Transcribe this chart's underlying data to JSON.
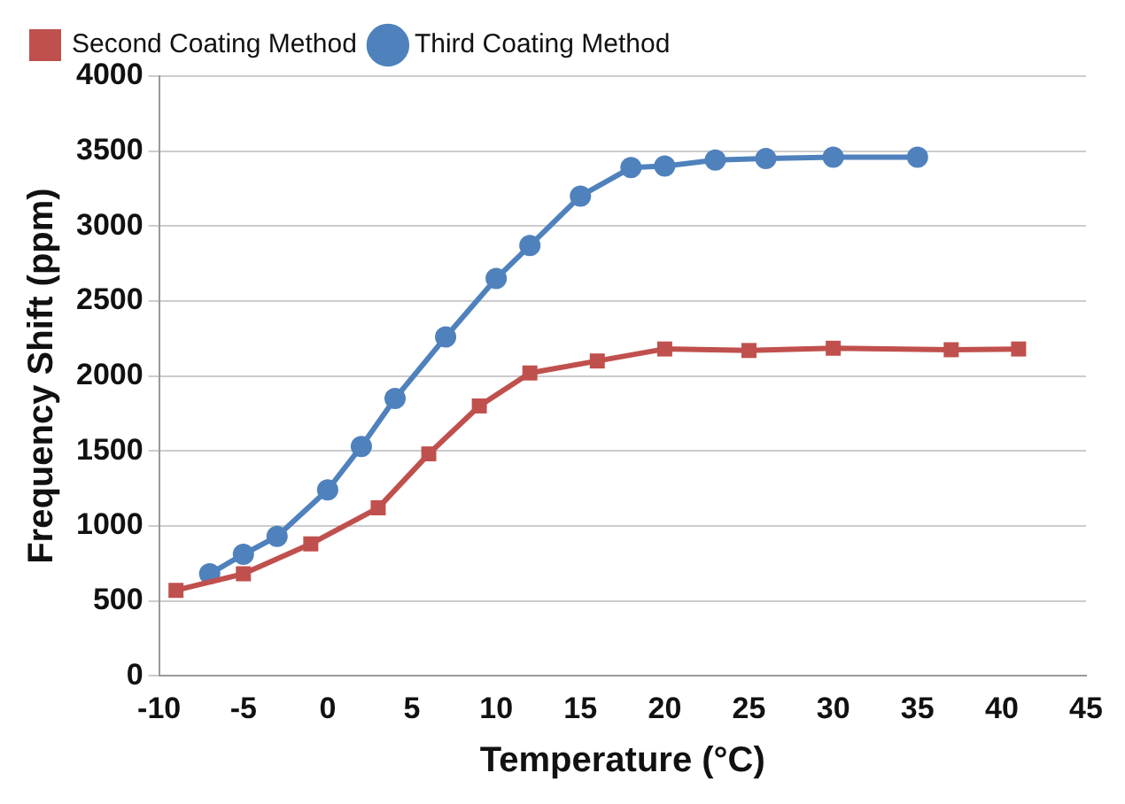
{
  "chart_data": {
    "type": "line",
    "xlabel": "Temperature (°C)",
    "ylabel": "Frequency Shift (ppm)",
    "xlim": [
      -10,
      45
    ],
    "xticks": [
      -10,
      -5,
      0,
      5,
      10,
      15,
      20,
      25,
      30,
      35,
      40,
      45
    ],
    "ylim": [
      0,
      4000
    ],
    "yticks": [
      0,
      500,
      1000,
      1500,
      2000,
      2500,
      3000,
      3500,
      4000
    ],
    "grid": "y",
    "legend": "top left",
    "series": [
      {
        "name": "Second Coating Method",
        "color": "#c0504d",
        "marker": "square",
        "x": [
          -9,
          -5,
          -1,
          3,
          6,
          9,
          12,
          16,
          20,
          25,
          30,
          37,
          41
        ],
        "values": [
          570,
          680,
          880,
          1120,
          1480,
          1800,
          2020,
          2100,
          2180,
          2170,
          2185,
          2175,
          2180
        ]
      },
      {
        "name": "Third Coating Method",
        "color": "#4f81bd",
        "marker": "circle",
        "x": [
          -7,
          -5,
          -3,
          0,
          2,
          4,
          7,
          10,
          12,
          15,
          18,
          20,
          23,
          26,
          30,
          35
        ],
        "values": [
          680,
          810,
          930,
          1240,
          1530,
          1850,
          2260,
          2650,
          2870,
          3200,
          3390,
          3400,
          3440,
          3450,
          3460,
          3460
        ]
      }
    ]
  }
}
